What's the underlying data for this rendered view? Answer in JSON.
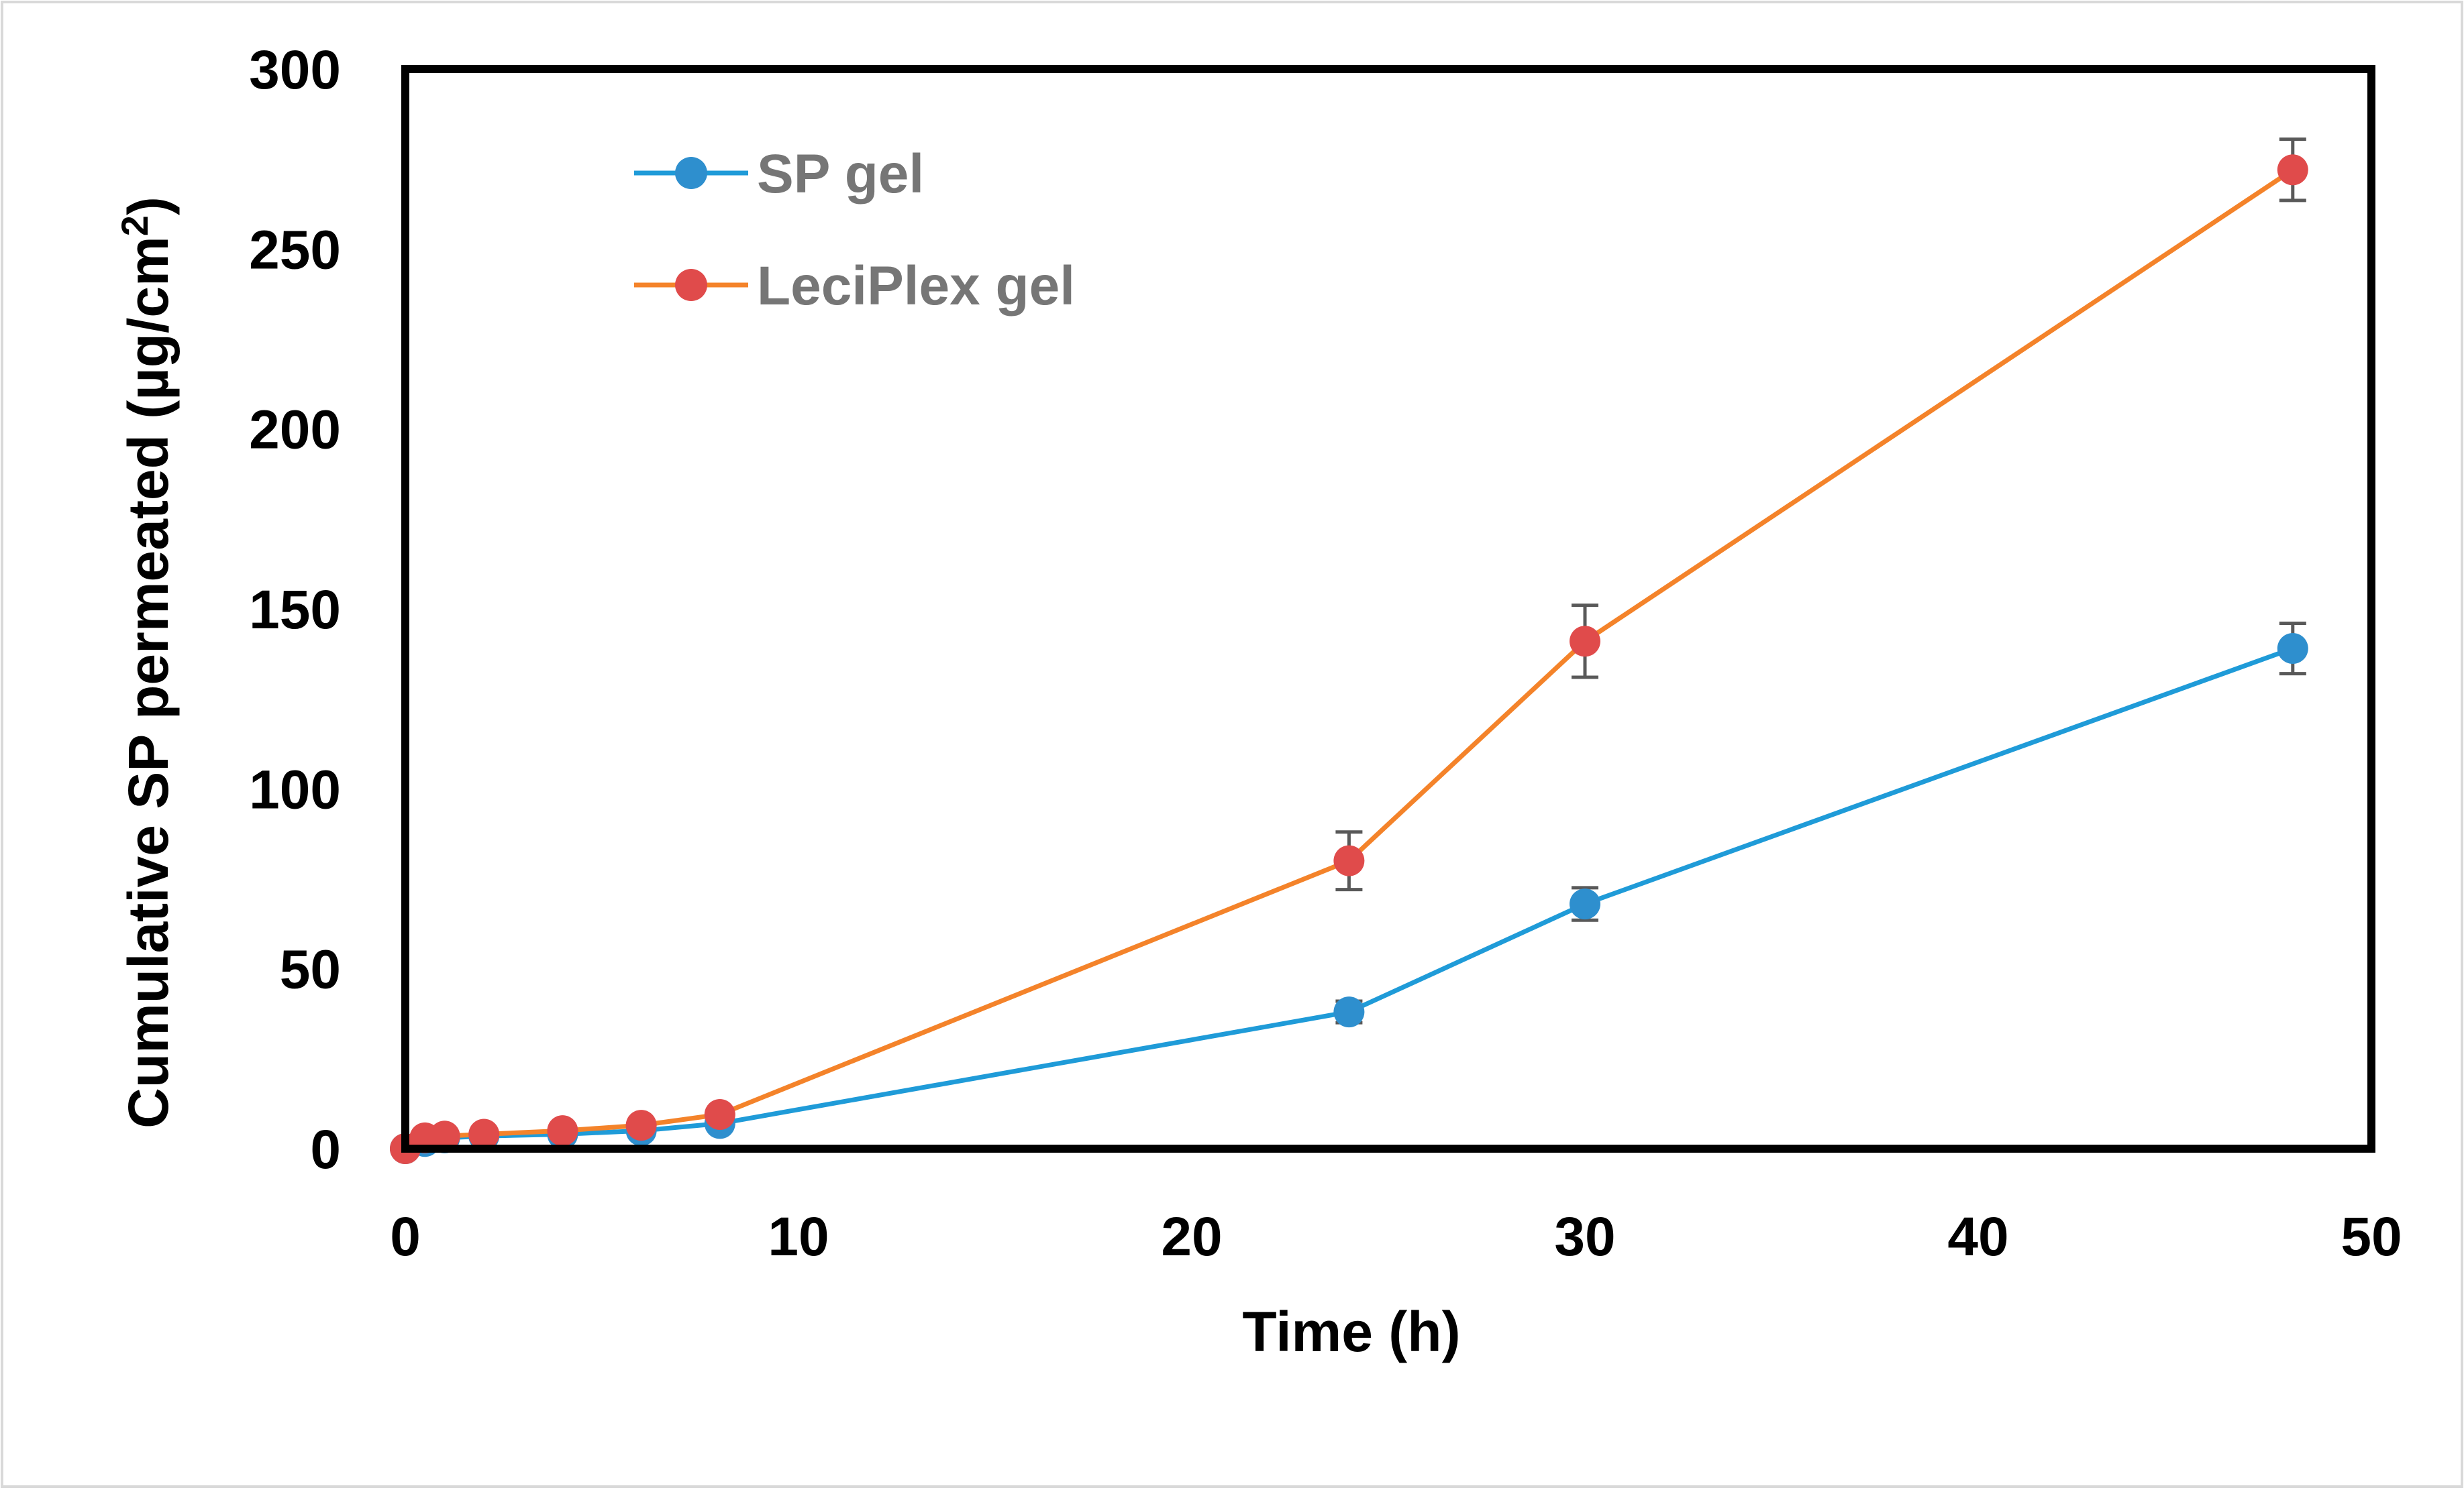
{
  "chart_data": {
    "type": "line",
    "title": "",
    "xlabel": "Time (h)",
    "ylabel": "Cumulative SP permeated (µg/cm",
    "ylabel_superscript": "2",
    "ylabel_close": ")",
    "xlim": [
      0,
      50
    ],
    "ylim": [
      0,
      300
    ],
    "xticks": [
      0,
      10,
      20,
      30,
      40,
      50
    ],
    "yticks": [
      0,
      50,
      100,
      150,
      200,
      250,
      300
    ],
    "grid": false,
    "legend_position": "top-left",
    "series": [
      {
        "name": "SP gel",
        "color": "#2E8FCE",
        "line_color": "#1F9BD8",
        "x": [
          0,
          0.5,
          1,
          2,
          4,
          6,
          8,
          24,
          30,
          48
        ],
        "y": [
          0,
          2,
          3,
          3.5,
          4,
          5,
          7,
          38,
          68,
          139
        ],
        "error": [
          0,
          0,
          0,
          0,
          0,
          0,
          0,
          3,
          4.5,
          7
        ]
      },
      {
        "name": "LeciPlex gel",
        "color": "#E04B4B",
        "line_color": "#F4832A",
        "x": [
          0,
          0.5,
          1,
          2,
          4,
          6,
          8,
          24,
          30,
          48
        ],
        "y": [
          0,
          3,
          3.5,
          4,
          5,
          6.5,
          9.5,
          80,
          141,
          272
        ],
        "error": [
          0,
          0,
          0,
          0,
          0,
          0,
          0,
          8,
          10,
          8.5
        ]
      }
    ]
  }
}
